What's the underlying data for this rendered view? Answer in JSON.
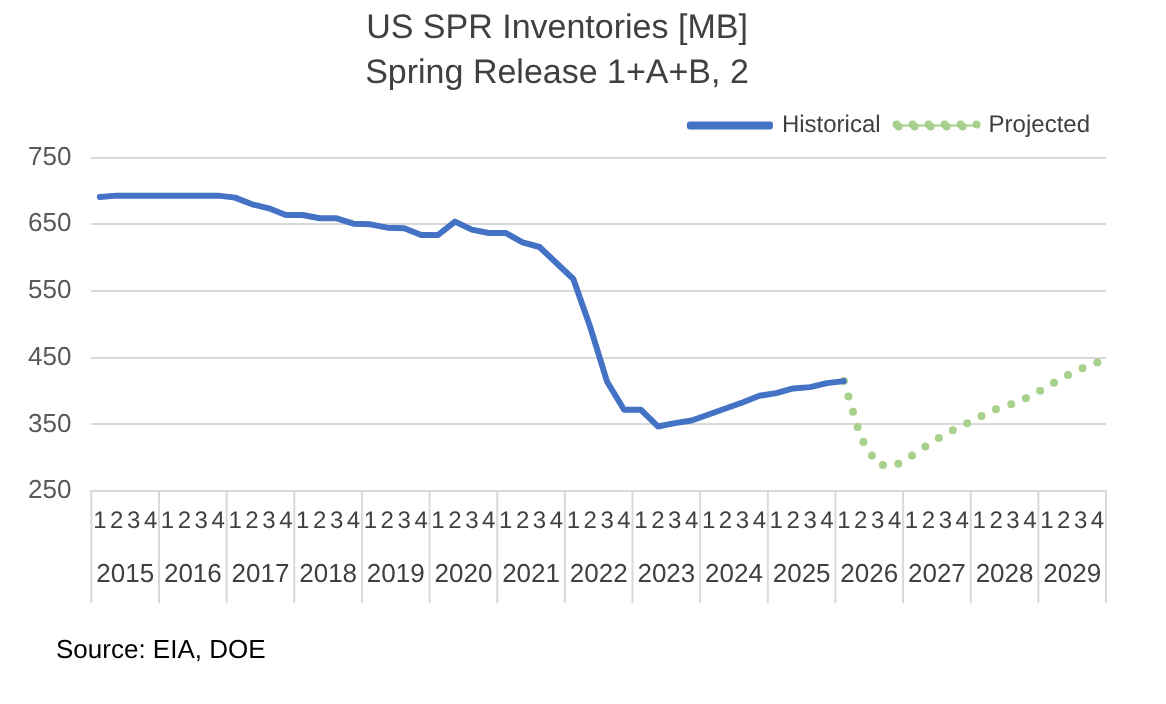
{
  "chart_data": {
    "type": "line",
    "title": "US SPR Inventories [MB]",
    "subtitle": "Spring Release 1+A+B, 2",
    "categories": [
      "1",
      "2",
      "3",
      "4",
      "1",
      "2",
      "3",
      "4",
      "1",
      "2",
      "3",
      "4",
      "1",
      "2",
      "3",
      "4",
      "1",
      "2",
      "3",
      "4",
      "1",
      "2",
      "3",
      "4",
      "1",
      "2",
      "3",
      "4",
      "1",
      "2",
      "3",
      "4",
      "1",
      "2",
      "3",
      "4",
      "1",
      "2",
      "3",
      "4",
      "1",
      "2",
      "3",
      "4",
      "1",
      "2",
      "3",
      "4",
      "1",
      "2",
      "3",
      "4",
      "1",
      "2",
      "3",
      "4",
      "1",
      "2",
      "3",
      "4"
    ],
    "series": [
      {
        "name": "Historical",
        "color": "#4472c4",
        "line_style": "solid",
        "values": [
          691,
          693,
          693,
          693,
          693,
          693,
          693,
          693,
          690,
          680,
          674,
          664,
          664,
          659,
          659,
          651,
          650,
          645,
          644,
          634,
          634,
          654,
          642,
          637,
          637,
          623,
          616,
          592,
          568,
          496,
          414,
          372,
          372,
          347,
          352,
          356,
          365,
          374,
          383,
          393,
          397,
          404,
          406,
          412,
          415,
          null,
          null,
          null,
          null,
          null,
          null,
          null,
          null,
          null,
          null,
          null,
          null,
          null,
          null,
          null
        ]
      },
      {
        "name": "Projected",
        "color": "#a9d18e",
        "line_style": "dotted",
        "values": [
          null,
          null,
          null,
          null,
          null,
          null,
          null,
          null,
          null,
          null,
          null,
          null,
          null,
          null,
          null,
          null,
          null,
          null,
          null,
          null,
          null,
          null,
          null,
          null,
          null,
          null,
          null,
          null,
          null,
          null,
          null,
          null,
          null,
          null,
          null,
          null,
          null,
          null,
          null,
          null,
          null,
          null,
          null,
          null,
          415,
          330,
          290,
          288,
          303,
          320,
          336,
          348,
          361,
          373,
          381,
          392,
          406,
          421,
          433,
          443
        ]
      }
    ],
    "ylim": [
      250,
      750
    ],
    "yticks": [
      250,
      350,
      450,
      550,
      650,
      750
    ],
    "grid": "y",
    "legend": "top right",
    "marker": "none",
    "annotations": [
      "Source: EIA, DOE",
      "2015",
      "2016",
      "2017",
      "2018",
      "2019",
      "2020",
      "2021",
      "2022",
      "2023",
      "2024",
      "2025",
      "2026",
      "2027",
      "2028",
      "2029"
    ]
  }
}
